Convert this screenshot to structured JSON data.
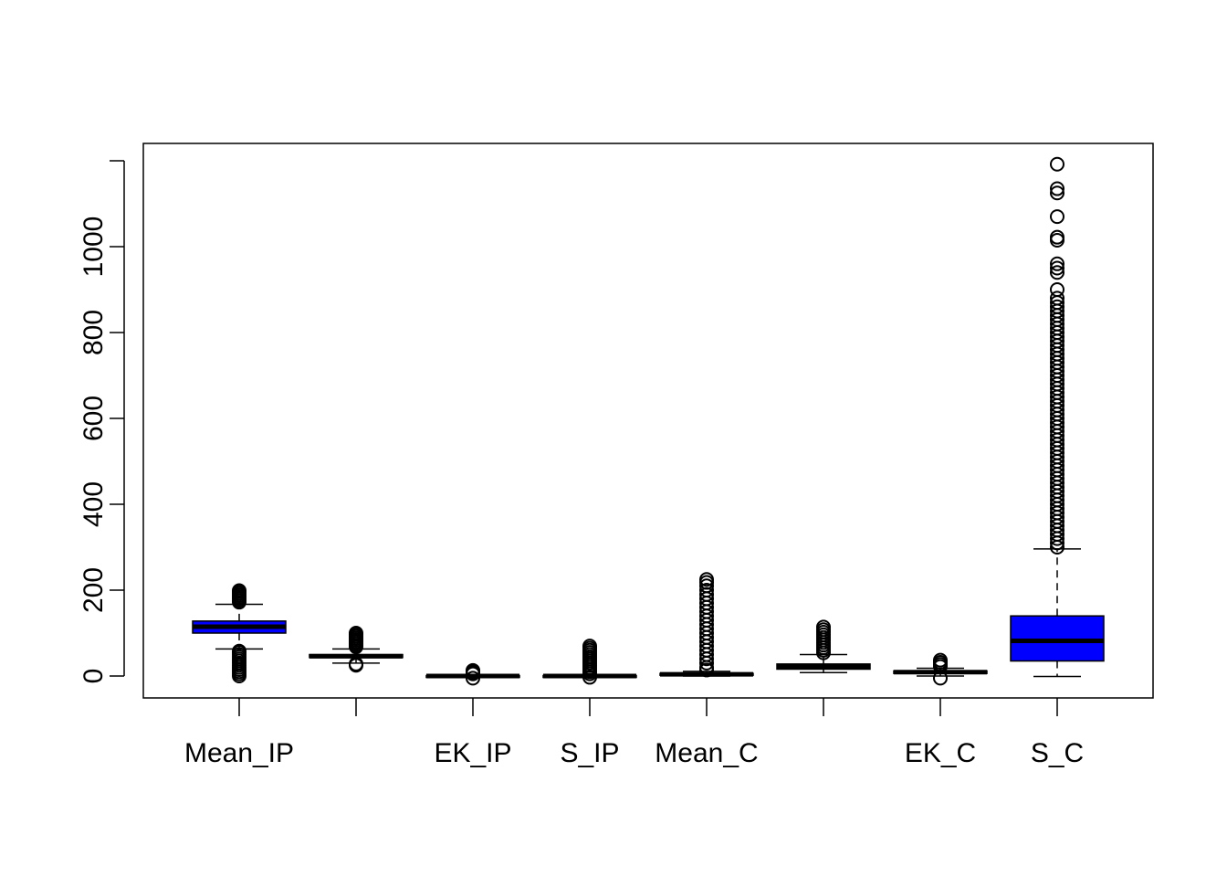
{
  "chart_data": {
    "type": "boxplot",
    "title": "",
    "xlabel": "",
    "ylabel": "",
    "ylim": [
      -50,
      1240
    ],
    "y_ticks": [
      0,
      200,
      400,
      600,
      800,
      1000
    ],
    "y_tick_labels": [
      "0",
      "200",
      "400",
      "600",
      "800",
      "1000"
    ],
    "grid": false,
    "legend": "none",
    "box_color": "#0000ff",
    "categories": [
      "Mean_IP",
      "",
      "EK_IP",
      "S_IP",
      "Mean_C",
      "",
      "EK_C",
      "S_C"
    ],
    "boxes": [
      {
        "label": "Mean_IP",
        "whisker_low": 63,
        "q1": 100,
        "median": 115,
        "q3": 128,
        "whisker_high": 167,
        "outliers": [
          0,
          5,
          10,
          15,
          20,
          25,
          30,
          35,
          40,
          45,
          50,
          55,
          58,
          172,
          176,
          180,
          184,
          188,
          192,
          196,
          199
        ]
      },
      {
        "label": "",
        "whisker_low": 30,
        "q1": 43,
        "median": 46,
        "q3": 50,
        "whisker_high": 63,
        "outliers": [
          25,
          28,
          68,
          72,
          76,
          80,
          84,
          88,
          92,
          96,
          100
        ]
      },
      {
        "label": "EK_IP",
        "whisker_low": -3,
        "q1": -1,
        "median": 0,
        "q3": 1,
        "whisker_high": 3,
        "outliers": [
          -5,
          5,
          8,
          11,
          13
        ]
      },
      {
        "label": "S_IP",
        "whisker_low": -2,
        "q1": -1,
        "median": 0,
        "q3": 1,
        "whisker_high": 3,
        "outliers": [
          -3,
          5,
          10,
          15,
          20,
          25,
          30,
          35,
          40,
          45,
          50,
          55,
          60,
          65,
          70
        ]
      },
      {
        "label": "Mean_C",
        "whisker_low": 0,
        "q1": 2,
        "median": 4,
        "q3": 6,
        "whisker_high": 11,
        "outliers": [
          14,
          20,
          30,
          40,
          50,
          60,
          70,
          80,
          90,
          100,
          110,
          120,
          130,
          140,
          150,
          160,
          170,
          180,
          190,
          200,
          210,
          218,
          225
        ]
      },
      {
        "label": "",
        "whisker_low": 8,
        "q1": 16,
        "median": 22,
        "q3": 28,
        "whisker_high": 50,
        "outliers": [
          54,
          60,
          66,
          72,
          78,
          84,
          90,
          96,
          102,
          108,
          114
        ]
      },
      {
        "label": "EK_C",
        "whisker_low": 0,
        "q1": 6,
        "median": 9,
        "q3": 12,
        "whisker_high": 18,
        "outliers": [
          -5,
          22,
          27,
          32,
          37
        ]
      },
      {
        "label": "S_C",
        "whisker_low": -1,
        "q1": 35,
        "median": 82,
        "q3": 140,
        "whisker_high": 296,
        "outliers": [
          300,
          310,
          320,
          330,
          340,
          350,
          360,
          370,
          380,
          390,
          400,
          410,
          420,
          430,
          440,
          450,
          460,
          470,
          480,
          490,
          500,
          510,
          520,
          530,
          540,
          550,
          560,
          570,
          580,
          590,
          600,
          610,
          620,
          630,
          640,
          650,
          660,
          670,
          680,
          690,
          700,
          710,
          720,
          730,
          740,
          750,
          760,
          770,
          780,
          790,
          800,
          810,
          820,
          830,
          840,
          850,
          860,
          870,
          880,
          900,
          940,
          950,
          960,
          1015,
          1022,
          1070,
          1125,
          1135,
          1192
        ]
      }
    ]
  }
}
